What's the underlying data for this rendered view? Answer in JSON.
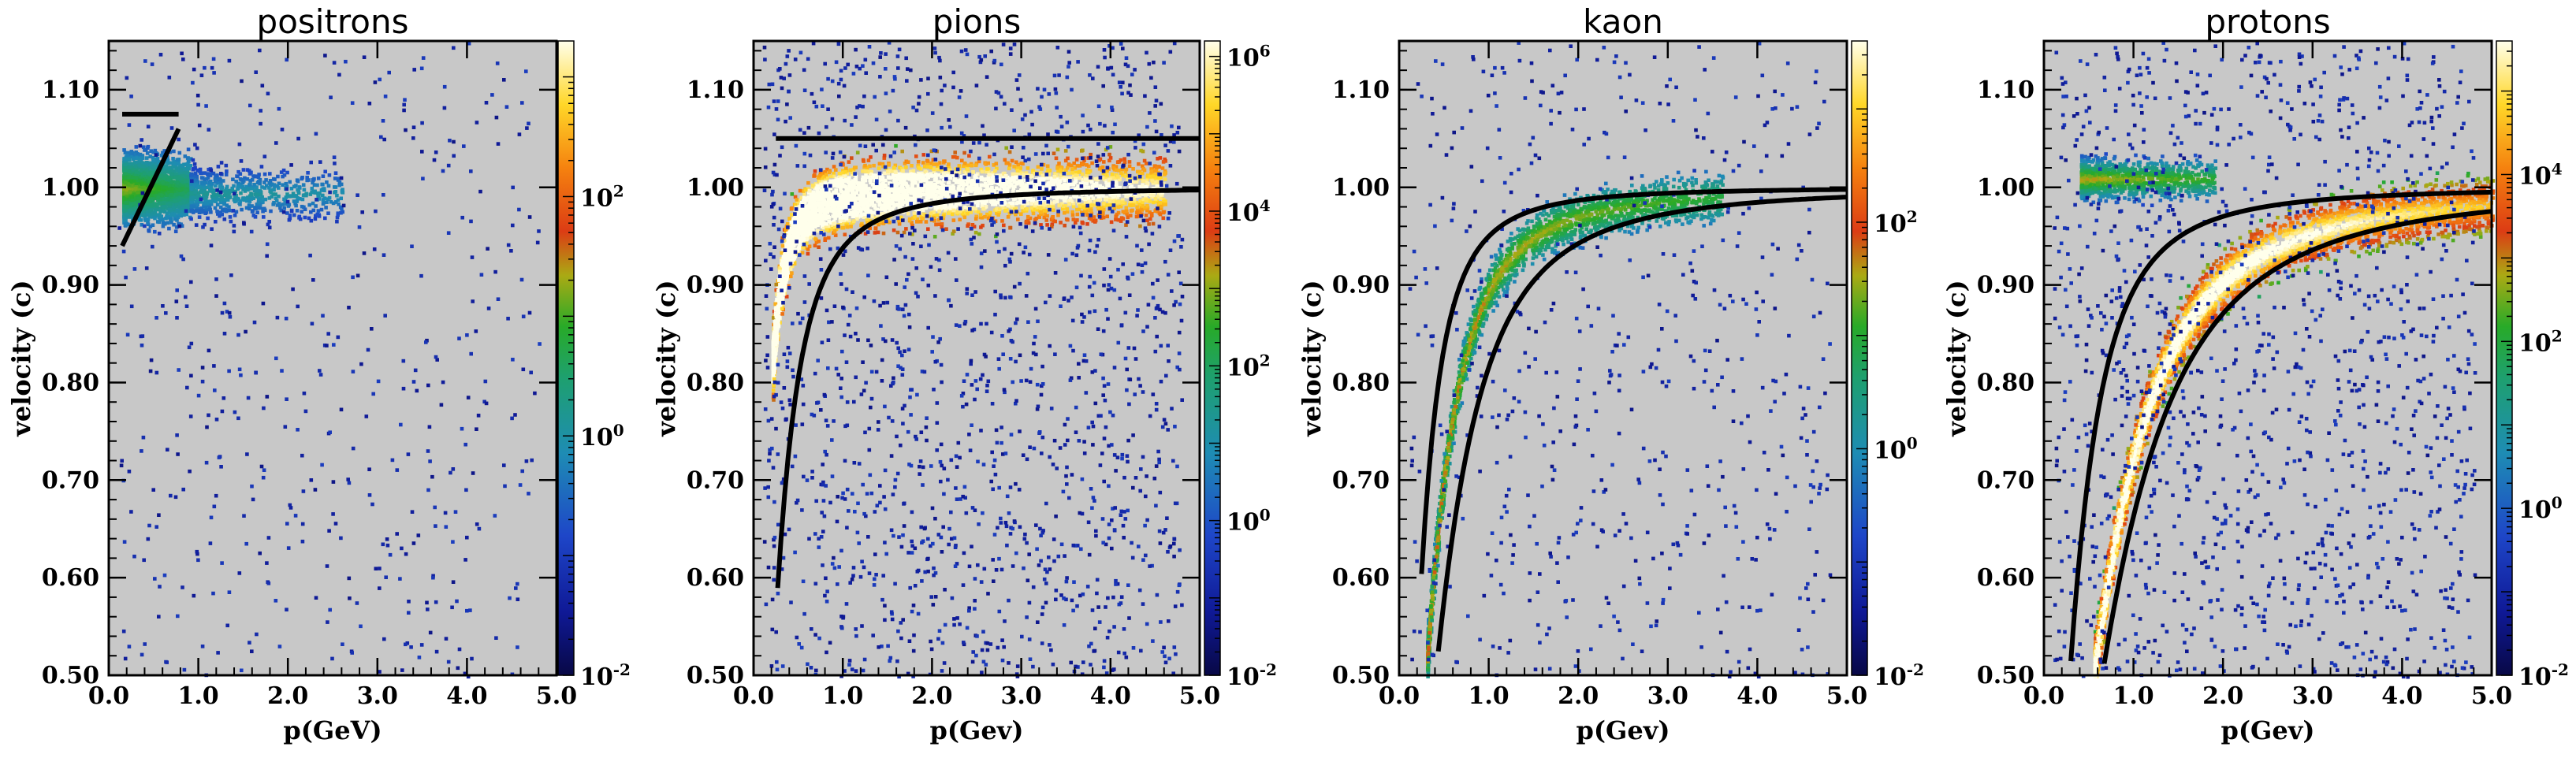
{
  "chart_data": [
    {
      "type": "heatmap",
      "title": "positrons",
      "xlabel": "p(GeV)",
      "ylabel": "velocity (c)",
      "xlim": [
        0,
        5.0
      ],
      "ylim": [
        0.5,
        1.15
      ],
      "xticks": [
        "0.0",
        "1.0",
        "2.0",
        "3.0",
        "4.0",
        "5.0"
      ],
      "yticks": [
        "0.50",
        "0.60",
        "0.70",
        "0.80",
        "0.90",
        "1.00",
        "1.10"
      ],
      "colorbar": {
        "scale": "log",
        "range_exp": [
          -2,
          3.3
        ],
        "ticks": [
          {
            "exp": -2,
            "label": "10-2"
          },
          {
            "exp": 0,
            "label": "100"
          },
          {
            "exp": 2,
            "label": "102"
          }
        ]
      },
      "density": [
        {
          "p_min": 0.15,
          "p_max": 0.9,
          "v_center": 1.0,
          "v_halfwidth": 0.025,
          "weight": 3.0
        },
        {
          "p_min": 0.9,
          "p_max": 2.6,
          "v_center": 0.995,
          "v_halfwidth": 0.02,
          "weight": 1.0
        }
      ],
      "curves": [
        {
          "name": "cut-flat",
          "points": [
            [
              0.15,
              1.075
            ],
            [
              0.78,
              1.075
            ]
          ]
        },
        {
          "name": "cut-line",
          "points": [
            [
              0.15,
              0.94
            ],
            [
              0.78,
              1.06
            ]
          ]
        }
      ]
    },
    {
      "type": "heatmap",
      "title": "pions",
      "xlabel": "p(Gev)",
      "ylabel": "velocity (c)",
      "xlim": [
        0,
        5.0
      ],
      "ylim": [
        0.5,
        1.15
      ],
      "xticks": [
        "0.0",
        "1.0",
        "2.0",
        "3.0",
        "4.0",
        "5.0"
      ],
      "yticks": [
        "0.50",
        "0.60",
        "0.70",
        "0.80",
        "0.90",
        "1.00",
        "1.10"
      ],
      "colorbar": {
        "scale": "log",
        "range_exp": [
          -2,
          6.2
        ],
        "ticks": [
          {
            "exp": -2,
            "label": "10-2"
          },
          {
            "exp": 0,
            "label": "100"
          },
          {
            "exp": 2,
            "label": "102"
          },
          {
            "exp": 4,
            "label": "104"
          },
          {
            "exp": 6,
            "label": "106"
          }
        ]
      },
      "density": [
        {
          "band_mass": 0.1396,
          "p_min": 0.2,
          "p_max": 4.6,
          "v_halfwidth": 0.025,
          "weight": 6.0
        }
      ],
      "curves": [
        {
          "name": "upper-cut",
          "points": [
            [
              0.25,
              1.05
            ],
            [
              5.0,
              1.05
            ]
          ]
        },
        {
          "name": "lower-cut",
          "mass": 0.37,
          "p_min": 0.27,
          "p_max": 5.0
        }
      ]
    },
    {
      "type": "heatmap",
      "title": "kaon",
      "xlabel": "p(Gev)",
      "ylabel": "velocity (c)",
      "xlim": [
        0,
        5.0
      ],
      "ylim": [
        0.5,
        1.15
      ],
      "xticks": [
        "0.0",
        "1.0",
        "2.0",
        "3.0",
        "4.0",
        "5.0"
      ],
      "yticks": [
        "0.50",
        "0.60",
        "0.70",
        "0.80",
        "0.90",
        "1.00",
        "1.10"
      ],
      "colorbar": {
        "scale": "log",
        "range_exp": [
          -2,
          3.6
        ],
        "ticks": [
          {
            "exp": -2,
            "label": "10-2"
          },
          {
            "exp": 0,
            "label": "100"
          },
          {
            "exp": 2,
            "label": "102"
          }
        ]
      },
      "density": [
        {
          "band_mass": 0.4937,
          "p_min": 0.3,
          "p_max": 3.6,
          "v_halfwidth": 0.018,
          "weight": 3.3
        }
      ],
      "curves": [
        {
          "name": "upper-cut",
          "mass": 0.33,
          "p_min": 0.25,
          "p_max": 5.0
        },
        {
          "name": "lower-cut",
          "mass": 0.71,
          "p_min": 0.36,
          "p_max": 5.0
        }
      ]
    },
    {
      "type": "heatmap",
      "title": "protons",
      "xlabel": "p(Gev)",
      "ylabel": "velocity (c)",
      "xlim": [
        0,
        5.0
      ],
      "ylim": [
        0.5,
        1.15
      ],
      "xticks": [
        "0.0",
        "1.0",
        "2.0",
        "3.0",
        "4.0",
        "5.0"
      ],
      "yticks": [
        "0.50",
        "0.60",
        "0.70",
        "0.80",
        "0.90",
        "1.00",
        "1.10"
      ],
      "colorbar": {
        "scale": "log",
        "range_exp": [
          -2,
          5.6
        ],
        "ticks": [
          {
            "exp": -2,
            "label": "10-2"
          },
          {
            "exp": 0,
            "label": "100"
          },
          {
            "exp": 2,
            "label": "102"
          },
          {
            "exp": 4,
            "label": "104"
          }
        ]
      },
      "density": [
        {
          "band_mass": 0.9383,
          "p_min": 0.55,
          "p_max": 5.0,
          "v_halfwidth": 0.022,
          "weight": 5.3
        },
        {
          "p_min": 0.4,
          "p_max": 1.9,
          "v_center": 1.01,
          "v_halfwidth": 0.015,
          "weight": 1.5
        }
      ],
      "curves": [
        {
          "name": "upper-cut",
          "mass": 0.5,
          "p_min": 0.3,
          "p_max": 5.0
        },
        {
          "name": "lower-cut",
          "mass": 1.13,
          "p_min": 0.6,
          "p_max": 5.0
        }
      ]
    }
  ]
}
